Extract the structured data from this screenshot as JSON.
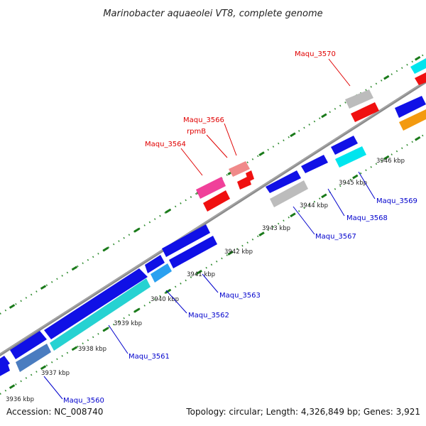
{
  "title": "Marinobacter aquaeolei VT8, complete genome",
  "footer": {
    "accession": "Accession: NC_008740",
    "summary": "Topology: circular; Length: 4,326,849 bp; Genes: 3,921"
  },
  "colors": {
    "backbone": "#8c8c8c",
    "tick_dot": "#2e8b2e",
    "label_red": "#e00000",
    "label_blue": "#0000cc",
    "gene_blue": "#1010e6",
    "gene_cyan": "#26d2d2",
    "gene_lightblue": "#2aa0f0",
    "gene_aqua": "#00e5ee",
    "gene_steel": "#4a7cc0",
    "gene_gray": "#bcbcbc",
    "gene_red": "#f01010",
    "gene_pink": "#f0409a",
    "gene_salmon": "#f08a8a",
    "gene_orange": "#f39a10"
  },
  "ticks": [
    "3936 kbp",
    "3937 kbp",
    "3938 kbp",
    "3939 kbp",
    "3940 kbp",
    "3941 kbp",
    "3942 kbp",
    "3943 kbp",
    "3944 kbp",
    "3945 kbp",
    "3946 kbp"
  ],
  "gene_labels": {
    "maqu_3560": "Maqu_3560",
    "maqu_3561": "Maqu_3561",
    "maqu_3562": "Maqu_3562",
    "maqu_3563": "Maqu_3563",
    "maqu_3564": "Maqu_3564",
    "maqu_3566": "Maqu_3566",
    "rpmb": "rpmB",
    "maqu_3567": "Maqu_3567",
    "maqu_3568": "Maqu_3568",
    "maqu_3569": "Maqu_3569",
    "maqu_3570": "Maqu_3570"
  }
}
